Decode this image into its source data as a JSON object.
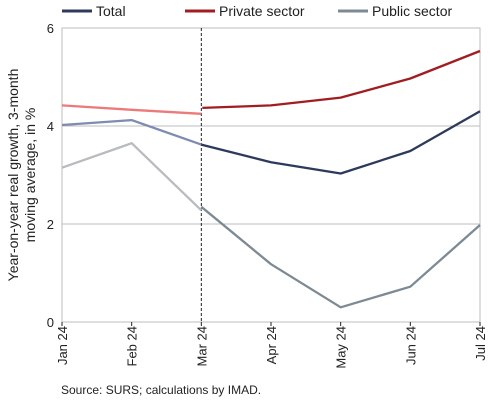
{
  "chart_data": {
    "type": "line",
    "x": [
      "Jan 24",
      "Feb 24",
      "Mar 24",
      "Apr 24",
      "May 24",
      "Jun 24",
      "Jul 24"
    ],
    "ylabel_line1": "Year-on-year real growth, 3-month",
    "ylabel_line2": "moving average, in %",
    "ylim": [
      0,
      6
    ],
    "yticks": [
      "0",
      "2",
      "4",
      "6"
    ],
    "grid": "horizontal",
    "legend": "top",
    "divider_after_category": "Mar 24",
    "series": [
      {
        "name": "Total",
        "color": "#2e3a5c",
        "light_color": "#7f8bb0",
        "values": [
          4.02,
          4.12,
          3.62,
          3.26,
          3.03,
          3.49,
          4.3
        ]
      },
      {
        "name": "Private sector",
        "color": "#a01e22",
        "light_color": "#ec7a7a",
        "values": [
          4.42,
          4.33,
          4.25,
          4.42,
          4.58,
          4.97,
          5.53
        ],
        "break_at_divider": true
      },
      {
        "name": "Public sector",
        "color": "#7d8a94",
        "light_color": "#b8bcbf",
        "values": [
          3.15,
          3.65,
          2.28,
          1.18,
          0.3,
          0.72,
          1.98
        ],
        "divider_value": 2.35
      }
    ],
    "source": "Source: SURS; calculations by IMAD."
  }
}
